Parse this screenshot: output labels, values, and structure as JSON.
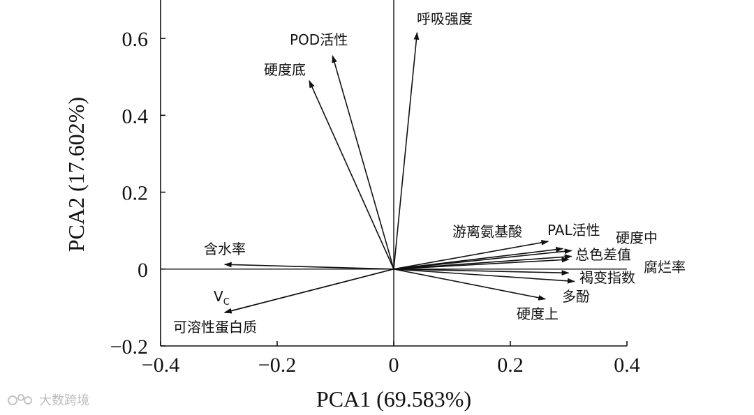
{
  "chart_data": {
    "type": "scatter",
    "subtype": "pca-biplot-vectors",
    "title": "",
    "xlabel": "PCA1 (69.583%)",
    "ylabel": "PCA2 (17.602%)",
    "xlim": [
      -0.4,
      0.4
    ],
    "ylim": [
      -0.2,
      0.7
    ],
    "xticks": [
      -0.4,
      -0.2,
      0,
      0.2,
      0.4
    ],
    "xtick_labels": [
      "−0.4",
      "−0.2",
      "0",
      "0.2",
      "0.4"
    ],
    "yticks": [
      -0.2,
      0,
      0.2,
      0.4,
      0.6
    ],
    "ytick_labels": [
      "−0.2",
      "0",
      "0.2",
      "0.4",
      "0.6"
    ],
    "grid": false,
    "vectors": [
      {
        "label": "呼吸强度",
        "x": 0.04,
        "y": 0.615
      },
      {
        "label": "POD活性",
        "x": -0.105,
        "y": 0.555
      },
      {
        "label": "硬度底",
        "x": -0.145,
        "y": 0.49
      },
      {
        "label": "含水率",
        "x": -0.29,
        "y": 0.012
      },
      {
        "label": "VC",
        "x": -0.29,
        "y": -0.113
      },
      {
        "label": "可溶性蛋白质",
        "x": -0.29,
        "y": -0.113
      },
      {
        "label": "游离氨基酸",
        "x": 0.265,
        "y": 0.072
      },
      {
        "label": "PAL活性",
        "x": 0.29,
        "y": 0.053
      },
      {
        "label": "硬度中",
        "x": 0.305,
        "y": 0.048
      },
      {
        "label": "总色差值",
        "x": 0.305,
        "y": 0.033
      },
      {
        "label": "腐烂率",
        "x": 0.3,
        "y": 0.025
      },
      {
        "label": "褐变指数",
        "x": 0.3,
        "y": -0.01
      },
      {
        "label": "多酚",
        "x": 0.31,
        "y": -0.032
      },
      {
        "label": "硬度上",
        "x": 0.26,
        "y": -0.078
      }
    ],
    "label_texts": [
      {
        "text": "呼吸强度"
      },
      {
        "text": "POD活性"
      },
      {
        "text": "硬度底"
      },
      {
        "text": "含水率"
      },
      {
        "text": "V",
        "sub": "C"
      },
      {
        "text": "可溶性蛋白质"
      },
      {
        "text": "游离氨基酸"
      },
      {
        "text": "PAL活性"
      },
      {
        "text": "硬度中"
      },
      {
        "text": "总色差值"
      },
      {
        "text": "腐烂率"
      },
      {
        "text": "褐变指数"
      },
      {
        "text": "多酚"
      },
      {
        "text": "硬度上"
      }
    ]
  },
  "watermark": {
    "text": "大数跨境",
    "icon": "watermark-logo-icon"
  },
  "colors": {
    "axis": "#111111",
    "arrow": "#111111",
    "background": "#ffffff",
    "watermark": "#bdbdbd"
  }
}
